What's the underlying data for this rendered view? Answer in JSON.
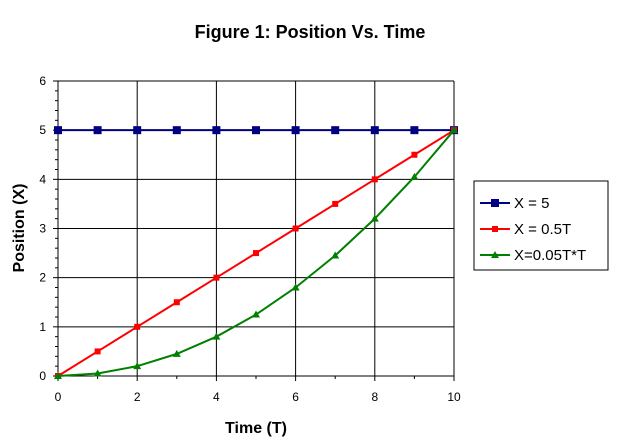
{
  "chart_data": {
    "type": "line",
    "title": "Figure 1: Position Vs. Time",
    "xlabel": "Time (T)",
    "ylabel": "Position (X)",
    "xlim": [
      0,
      10
    ],
    "ylim": [
      0,
      6
    ],
    "x_ticks": [
      0,
      2,
      4,
      6,
      8,
      10
    ],
    "y_ticks": [
      0,
      1,
      2,
      3,
      4,
      5,
      6
    ],
    "grid": true,
    "legend_position": "right",
    "x": [
      0,
      1,
      2,
      3,
      4,
      5,
      6,
      7,
      8,
      9,
      10
    ],
    "series": [
      {
        "name": "X = 5",
        "color": "#000080",
        "marker": "square",
        "values": [
          5,
          5,
          5,
          5,
          5,
          5,
          5,
          5,
          5,
          5,
          5
        ]
      },
      {
        "name": "X = 0.5T",
        "color": "#ff0000",
        "marker": "small-square",
        "values": [
          0,
          0.5,
          1,
          1.5,
          2,
          2.5,
          3,
          3.5,
          4,
          4.5,
          5
        ]
      },
      {
        "name": "X=0.05T*T",
        "color": "#008000",
        "marker": "triangle",
        "values": [
          0,
          0.05,
          0.2,
          0.45,
          0.8,
          1.25,
          1.8,
          2.45,
          3.2,
          4.05,
          5
        ]
      }
    ]
  }
}
